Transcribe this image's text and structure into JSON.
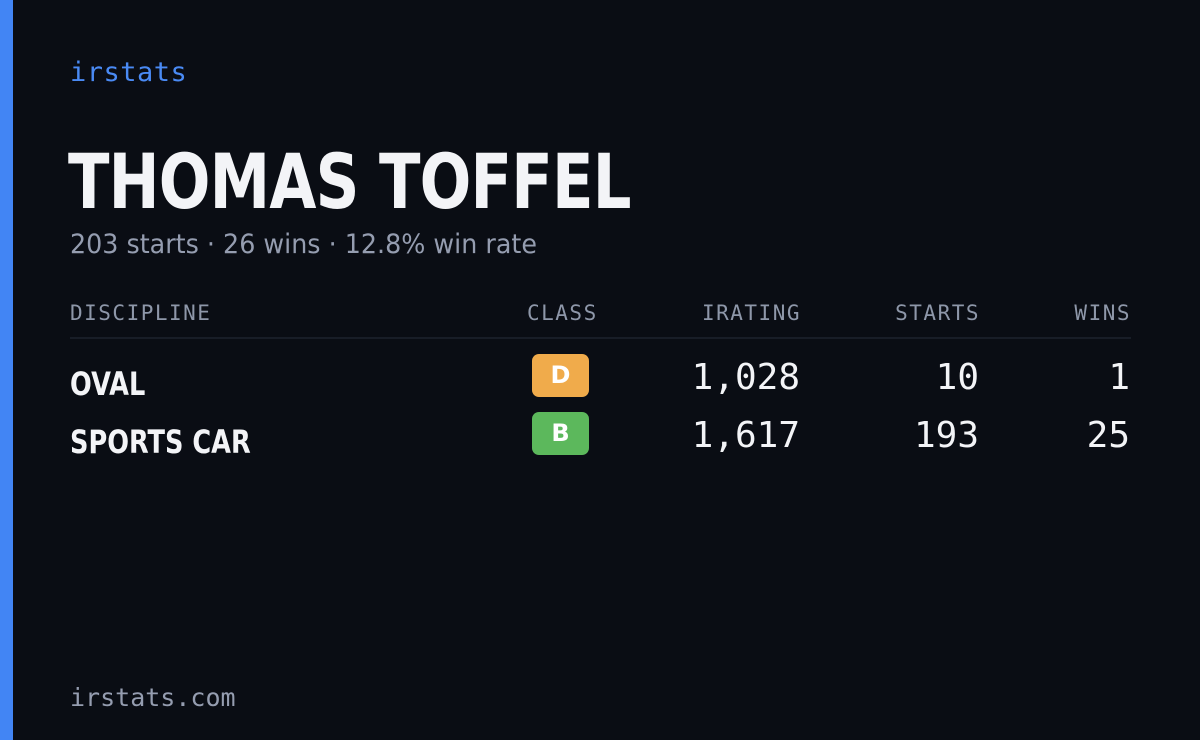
{
  "brand": "irstats",
  "driver": {
    "name": "THOMAS TOFFEL",
    "summary": "203 starts · 26 wins · 12.8% win rate"
  },
  "table": {
    "headers": {
      "discipline": "DISCIPLINE",
      "class": "CLASS",
      "irating": "IRATING",
      "starts": "STARTS",
      "wins": "WINS"
    },
    "rows": [
      {
        "discipline": "OVAL",
        "class": "D",
        "class_color": "#f0ab4b",
        "irating": "1,028",
        "starts": "10",
        "wins": "1"
      },
      {
        "discipline": "SPORTS CAR",
        "class": "B",
        "class_color": "#5cb85c",
        "irating": "1,617",
        "starts": "193",
        "wins": "25"
      }
    ]
  },
  "footer": "irstats.com",
  "colors": {
    "accent": "#4285f4",
    "background": "#0a0d14"
  }
}
